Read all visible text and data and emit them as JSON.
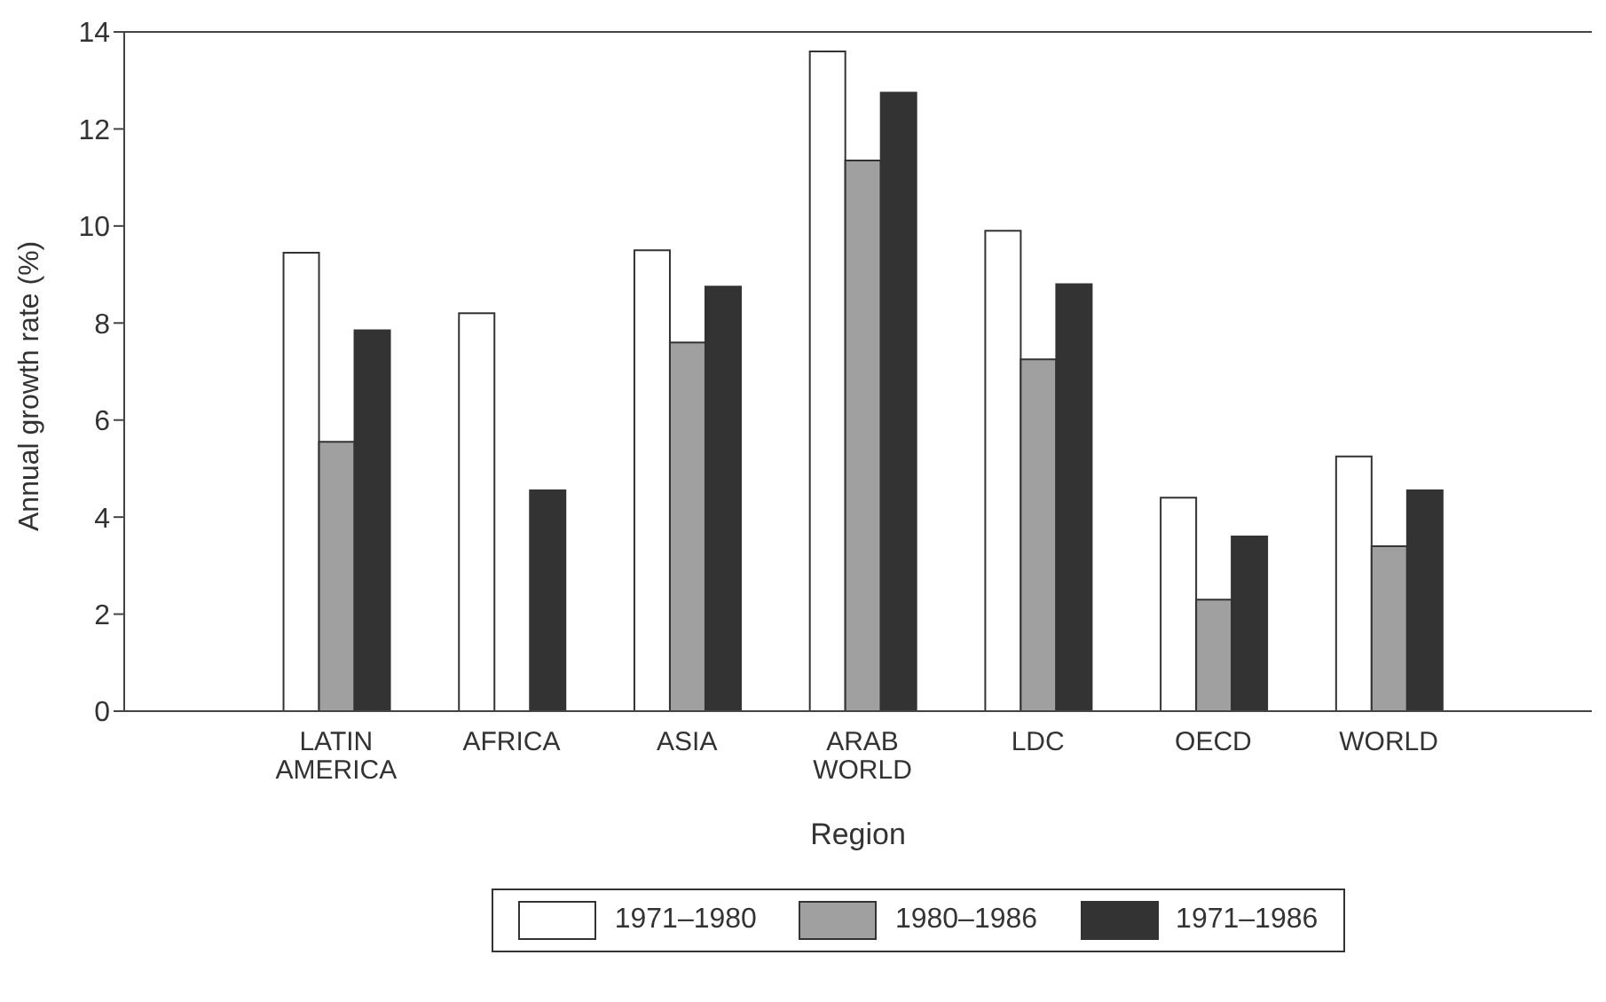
{
  "chart_data": {
    "type": "bar",
    "xlabel": "Region",
    "ylabel": "Annual growth rate (%)",
    "categories": [
      "LATIN AMERICA",
      "AFRICA",
      "ASIA",
      "ARAB WORLD",
      "LDC",
      "OECD",
      "WORLD"
    ],
    "series": [
      {
        "name": "1971–1980",
        "color": "#ffffff",
        "values": [
          9.45,
          8.2,
          9.5,
          13.6,
          9.9,
          4.4,
          5.25
        ]
      },
      {
        "name": "1980–1986",
        "color": "#a0a0a0",
        "values": [
          5.55,
          null,
          7.6,
          11.35,
          7.25,
          2.3,
          3.4
        ]
      },
      {
        "name": "1971–1986",
        "color": "#333333",
        "values": [
          7.85,
          4.55,
          8.75,
          12.75,
          8.8,
          3.6,
          4.55
        ]
      }
    ],
    "ylim": [
      0,
      14
    ],
    "yticks": [
      0,
      2,
      4,
      6,
      8,
      10,
      12,
      14
    ],
    "grid": false,
    "legend": "bottom"
  }
}
